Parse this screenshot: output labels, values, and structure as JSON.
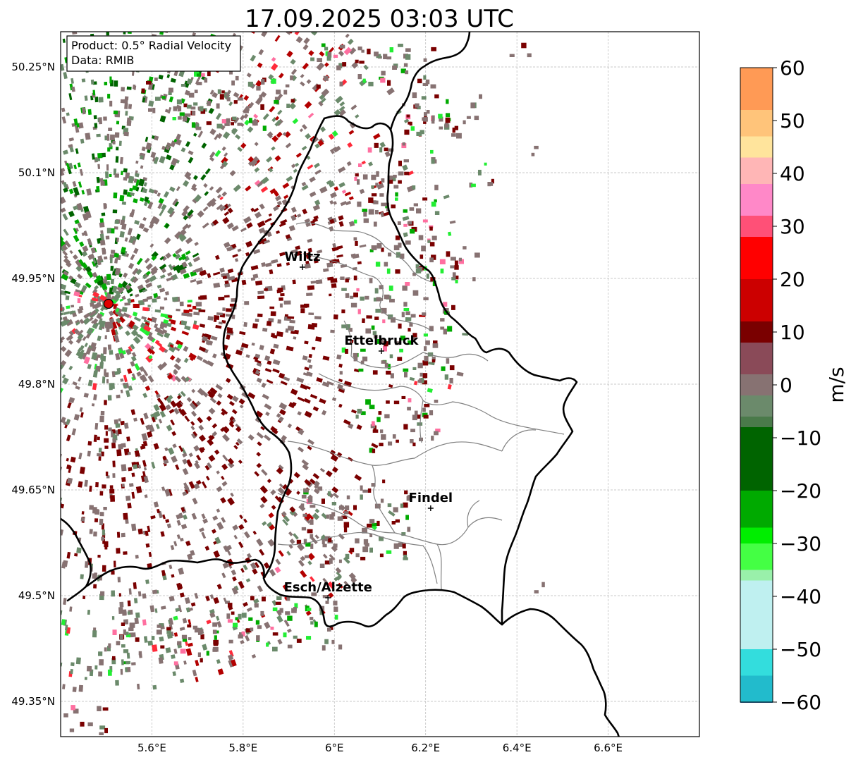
{
  "title": "17.09.2025 03:03 UTC",
  "info_box": {
    "product": "Product: 0.5° Radial Velocity",
    "source": "Data: RMIB"
  },
  "map": {
    "x_ticks": [
      {
        "value": 5.6,
        "label": "5.6°E"
      },
      {
        "value": 5.8,
        "label": "5.8°E"
      },
      {
        "value": 6.0,
        "label": "6°E"
      },
      {
        "value": 6.2,
        "label": "6.2°E"
      },
      {
        "value": 6.4,
        "label": "6.4°E"
      },
      {
        "value": 6.6,
        "label": "6.6°E"
      }
    ],
    "y_ticks": [
      {
        "value": 50.25,
        "label": "50.25°N"
      },
      {
        "value": 50.1,
        "label": "50.1°N"
      },
      {
        "value": 49.95,
        "label": "49.95°N"
      },
      {
        "value": 49.8,
        "label": "49.8°N"
      },
      {
        "value": 49.65,
        "label": "49.65°N"
      },
      {
        "value": 49.5,
        "label": "49.5°N"
      },
      {
        "value": 49.35,
        "label": "49.35°N"
      }
    ],
    "extent": {
      "lon_min": 5.4,
      "lon_max": 6.8,
      "lat_min": 49.3,
      "lat_max": 50.3
    },
    "grid": true,
    "radar_site": {
      "lon": 5.505,
      "lat": 49.914
    },
    "cities": [
      {
        "name": "Wiltz",
        "lon": 5.93,
        "lat": 49.966
      },
      {
        "name": "Ettelbruck",
        "lon": 6.103,
        "lat": 49.847
      },
      {
        "name": "Findel",
        "lon": 6.211,
        "lat": 49.624
      },
      {
        "name": "Esch/Alzette",
        "lon": 5.986,
        "lat": 49.497
      }
    ]
  },
  "colorbar": {
    "label": "m/s",
    "vmin": -60,
    "vmax": 60,
    "ticks": [
      {
        "value": 60,
        "label": "60"
      },
      {
        "value": 50,
        "label": "50"
      },
      {
        "value": 40,
        "label": "40"
      },
      {
        "value": 30,
        "label": "30"
      },
      {
        "value": 20,
        "label": "20"
      },
      {
        "value": 10,
        "label": "10"
      },
      {
        "value": 0,
        "label": "0"
      },
      {
        "value": -10,
        "label": "−10"
      },
      {
        "value": -20,
        "label": "−20"
      },
      {
        "value": -30,
        "label": "−30"
      },
      {
        "value": -40,
        "label": "−40"
      },
      {
        "value": -50,
        "label": "−50"
      },
      {
        "value": -60,
        "label": "−60"
      }
    ],
    "stops": [
      {
        "value": 60,
        "color": "#ff9a55"
      },
      {
        "value": 52,
        "color": "#ffc47a"
      },
      {
        "value": 47,
        "color": "#ffe49c"
      },
      {
        "value": 43,
        "color": "#ffb6b6"
      },
      {
        "value": 38,
        "color": "#ff88c8"
      },
      {
        "value": 32,
        "color": "#ff5077"
      },
      {
        "value": 28,
        "color": "#ff0000"
      },
      {
        "value": 20,
        "color": "#cc0000"
      },
      {
        "value": 12,
        "color": "#7a0000"
      },
      {
        "value": 8,
        "color": "#8a4a58"
      },
      {
        "value": 2,
        "color": "#877272"
      },
      {
        "value": -2,
        "color": "#6b8a6b"
      },
      {
        "value": -6,
        "color": "#4a7a4a"
      },
      {
        "value": -8,
        "color": "#006400"
      },
      {
        "value": -20,
        "color": "#00aa00"
      },
      {
        "value": -27,
        "color": "#00ee00"
      },
      {
        "value": -30,
        "color": "#44ff44"
      },
      {
        "value": -35,
        "color": "#99f0aa"
      },
      {
        "value": -37,
        "color": "#bff0f0"
      },
      {
        "value": -50,
        "color": "#33dddd"
      },
      {
        "value": -55,
        "color": "#22bbcc"
      },
      {
        "value": -60,
        "color": "#2077b4"
      }
    ]
  },
  "colors": {
    "recede_dark": "#7a0000",
    "recede_mid": "#b30000",
    "recede_bright": "#ff2a3a",
    "recede_pink": "#ff6fa0",
    "near_zero": "#877272",
    "near_zero_green": "#6b8a6b",
    "approach_dark": "#006400",
    "approach_mid": "#00aa00",
    "approach_bright": "#22ee33",
    "radar_dot": "#e00000"
  }
}
